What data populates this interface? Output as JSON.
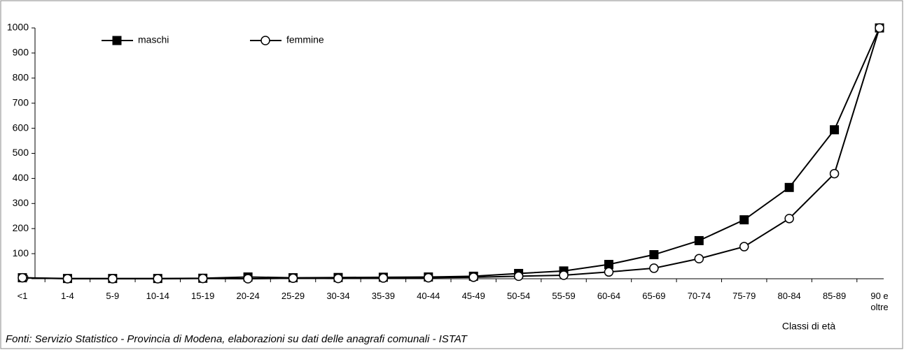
{
  "chart_data": {
    "type": "line",
    "categories": [
      "<1",
      "1-4",
      "5-9",
      "10-14",
      "15-19",
      "20-24",
      "25-29",
      "30-34",
      "35-39",
      "40-44",
      "45-49",
      "50-54",
      "55-59",
      "60-64",
      "65-69",
      "70-74",
      "75-79",
      "80-84",
      "85-89",
      "90 e oltre"
    ],
    "series": [
      {
        "name": "maschi",
        "color": "#000000",
        "marker": "square",
        "values": [
          4,
          1,
          1,
          1,
          2,
          7,
          4,
          5,
          6,
          7,
          10,
          21,
          31,
          57,
          96,
          152,
          235,
          364,
          594,
          1000
        ]
      },
      {
        "name": "femmine",
        "color": "#000000",
        "marker": "circle",
        "values": [
          4,
          0,
          0,
          0,
          1,
          0,
          2,
          1,
          3,
          4,
          6,
          10,
          14,
          27,
          42,
          80,
          128,
          240,
          419,
          1000
        ]
      }
    ],
    "ylim": [
      0,
      1000
    ],
    "yticks": [
      0,
      100,
      200,
      300,
      400,
      500,
      600,
      700,
      800,
      900,
      1000
    ],
    "xlabel": "Classi di età",
    "note": "Fonti: Servizio Statistico - Provincia di Modena, elaborazioni su dati delle anagrafi comunali - ISTAT",
    "legend": "top-left"
  }
}
